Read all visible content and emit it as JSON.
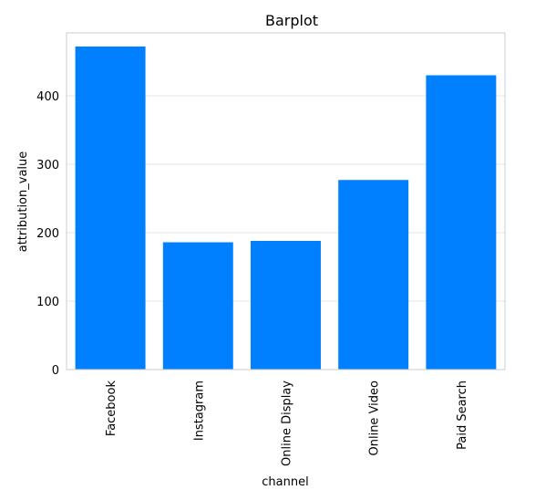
{
  "chart_data": {
    "type": "bar",
    "title": "Barplot",
    "xlabel": "channel",
    "ylabel": "attribution_value",
    "categories": [
      "Facebook",
      "Instagram",
      "Online Display",
      "Online Video",
      "Paid Search"
    ],
    "values": [
      472,
      186,
      188,
      277,
      430
    ],
    "ylim": [
      0,
      492
    ],
    "yticks": [
      0,
      100,
      200,
      300,
      400
    ],
    "grid": true,
    "bar_color": "#0080ff",
    "tick_label_rotation": "vertical"
  }
}
